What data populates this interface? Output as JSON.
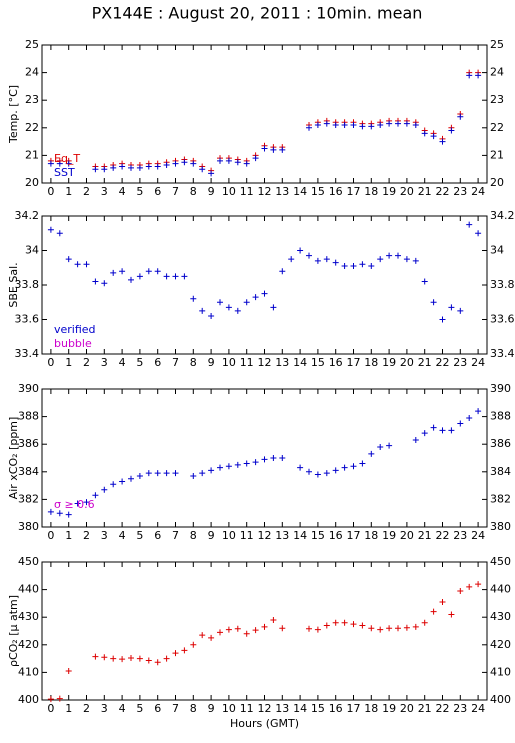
{
  "chart_data": [
    {
      "type": "scatter",
      "title": "PX144E : August 20, 2011 : 10min. mean",
      "ylabel": "Temp. [°C]",
      "x": [
        0,
        0.5,
        1,
        1.5,
        2,
        2.5,
        3,
        3.5,
        4,
        4.5,
        5,
        5.5,
        6,
        6.5,
        7,
        7.5,
        8,
        8.5,
        9,
        9.5,
        10,
        10.5,
        11,
        11.5,
        12,
        12.5,
        13,
        13.5,
        14,
        14.5,
        15,
        15.5,
        16,
        16.5,
        17,
        17.5,
        18,
        18.5,
        19,
        19.5,
        20,
        20.5,
        21,
        21.5,
        22,
        22.5,
        23,
        23.5,
        24
      ],
      "series": [
        {
          "name": "Eq_T",
          "color": "#dd0000",
          "values": [
            20.8,
            20.8,
            20.8,
            null,
            null,
            20.6,
            20.6,
            20.65,
            20.7,
            20.65,
            20.65,
            20.7,
            20.7,
            20.75,
            20.8,
            20.85,
            20.8,
            20.6,
            20.45,
            20.9,
            20.9,
            20.85,
            20.8,
            21.0,
            21.35,
            21.3,
            21.3,
            null,
            null,
            22.1,
            22.2,
            22.25,
            22.2,
            22.2,
            22.2,
            22.15,
            22.15,
            22.2,
            22.25,
            22.25,
            22.25,
            22.2,
            21.9,
            21.8,
            21.6,
            22.0,
            22.5,
            24.0,
            24.0
          ]
        },
        {
          "name": "SST",
          "color": "#0000cc",
          "values": [
            20.7,
            20.7,
            20.7,
            null,
            null,
            20.5,
            20.5,
            20.55,
            20.6,
            20.55,
            20.55,
            20.6,
            20.6,
            20.65,
            20.7,
            20.75,
            20.7,
            20.5,
            20.35,
            20.8,
            20.8,
            20.75,
            20.7,
            20.9,
            21.25,
            21.2,
            21.2,
            null,
            null,
            22.0,
            22.1,
            22.15,
            22.1,
            22.1,
            22.1,
            22.05,
            22.05,
            22.1,
            22.15,
            22.15,
            22.15,
            22.1,
            21.8,
            21.7,
            21.5,
            21.9,
            22.4,
            23.9,
            23.9
          ]
        }
      ],
      "xlim": [
        -0.5,
        24.5
      ],
      "xticks": [
        0,
        1,
        2,
        3,
        4,
        5,
        6,
        7,
        8,
        9,
        10,
        11,
        12,
        13,
        14,
        15,
        16,
        17,
        18,
        19,
        20,
        21,
        22,
        23,
        24
      ],
      "ylim": [
        20,
        25
      ],
      "yticks": [
        20,
        21,
        22,
        23,
        24,
        25
      ]
    },
    {
      "type": "scatter",
      "ylabel": "SBE Sal.",
      "x": [
        0,
        0.5,
        1,
        1.5,
        2,
        2.5,
        3,
        3.5,
        4,
        4.5,
        5,
        5.5,
        6,
        6.5,
        7,
        7.5,
        8,
        8.5,
        9,
        9.5,
        10,
        10.5,
        11,
        11.5,
        12,
        12.5,
        13,
        13.5,
        14,
        14.5,
        15,
        15.5,
        16,
        16.5,
        17,
        17.5,
        18,
        18.5,
        19,
        19.5,
        20,
        20.5,
        21,
        21.5,
        22,
        22.5,
        23,
        23.5,
        24
      ],
      "series": [
        {
          "name": "verified",
          "color": "#0000cc",
          "values": [
            34.12,
            34.1,
            33.95,
            33.92,
            33.92,
            33.82,
            33.81,
            33.87,
            33.88,
            33.83,
            33.85,
            33.88,
            33.88,
            33.85,
            33.85,
            33.85,
            33.72,
            33.65,
            33.62,
            33.7,
            33.67,
            33.65,
            33.7,
            33.73,
            33.75,
            33.67,
            33.88,
            33.95,
            34.0,
            33.97,
            33.94,
            33.95,
            33.93,
            33.91,
            33.91,
            33.92,
            33.91,
            33.95,
            33.97,
            33.97,
            33.95,
            33.94,
            33.82,
            33.7,
            33.6,
            33.67,
            33.65,
            34.15,
            34.1
          ]
        }
      ],
      "flags": [
        {
          "label": "verified",
          "color": "#0000cc"
        },
        {
          "label": "bubble",
          "color": "#cc00cc"
        }
      ],
      "xlim": [
        -0.5,
        24.5
      ],
      "xticks": [
        0,
        1,
        2,
        3,
        4,
        5,
        6,
        7,
        8,
        9,
        10,
        11,
        12,
        13,
        14,
        15,
        16,
        17,
        18,
        19,
        20,
        21,
        22,
        23,
        24
      ],
      "ylim": [
        33.4,
        34.2
      ],
      "yticks": [
        33.4,
        33.6,
        33.8,
        34,
        34.2
      ]
    },
    {
      "type": "scatter",
      "ylabel": "Air xCO₂ [ppm]",
      "x": [
        0,
        0.5,
        1,
        1.5,
        2,
        2.5,
        3,
        3.5,
        4,
        4.5,
        5,
        5.5,
        6,
        6.5,
        7,
        7.5,
        8,
        8.5,
        9,
        9.5,
        10,
        10.5,
        11,
        11.5,
        12,
        12.5,
        13,
        13.5,
        14,
        14.5,
        15,
        15.5,
        16,
        16.5,
        17,
        17.5,
        18,
        18.5,
        19,
        19.5,
        20,
        20.5,
        21,
        21.5,
        22,
        22.5,
        23,
        23.5,
        24
      ],
      "series": [
        {
          "name": "Air xCO₂",
          "color": "#0000cc",
          "values": [
            381.1,
            381.0,
            380.9,
            381.7,
            381.8,
            382.3,
            382.7,
            383.1,
            383.3,
            383.5,
            383.7,
            383.9,
            383.9,
            383.9,
            383.9,
            null,
            383.7,
            383.9,
            384.1,
            384.3,
            384.4,
            384.5,
            384.6,
            384.7,
            384.9,
            385.0,
            385.0,
            null,
            384.3,
            384.0,
            383.8,
            383.9,
            384.1,
            384.3,
            384.4,
            384.6,
            385.3,
            385.8,
            385.9,
            null,
            null,
            386.3,
            386.8,
            387.2,
            387.0,
            387.0,
            387.5,
            387.9,
            388.4
          ]
        }
      ],
      "annotation": {
        "text": "σ ≥ 0.6",
        "color": "#cc00cc"
      },
      "xlim": [
        -0.5,
        24.5
      ],
      "xticks": [
        0,
        1,
        2,
        3,
        4,
        5,
        6,
        7,
        8,
        9,
        10,
        11,
        12,
        13,
        14,
        15,
        16,
        17,
        18,
        19,
        20,
        21,
        22,
        23,
        24
      ],
      "ylim": [
        380,
        390
      ],
      "yticks": [
        380,
        382,
        384,
        386,
        388,
        390
      ]
    },
    {
      "type": "scatter",
      "ylabel": "ρCO₂ [µ atm]",
      "xlabel": "Hours (GMT)",
      "x": [
        0,
        0.5,
        1,
        1.5,
        2,
        2.5,
        3,
        3.5,
        4,
        4.5,
        5,
        5.5,
        6,
        6.5,
        7,
        7.5,
        8,
        8.5,
        9,
        9.5,
        10,
        10.5,
        11,
        11.5,
        12,
        12.5,
        13,
        13.5,
        14,
        14.5,
        15,
        15.5,
        16,
        16.5,
        17,
        17.5,
        18,
        18.5,
        19,
        19.5,
        20,
        20.5,
        21,
        21.5,
        22,
        22.5,
        23,
        23.5,
        24
      ],
      "series": [
        {
          "name": "ρCO₂",
          "color": "#dd0000",
          "values": [
            400.3,
            400.5,
            410.5,
            null,
            null,
            415.7,
            415.5,
            415.0,
            414.8,
            415.2,
            415.0,
            414.3,
            413.7,
            415.0,
            417.0,
            418.0,
            420.0,
            423.5,
            422.5,
            424.5,
            425.5,
            425.8,
            424.0,
            425.3,
            426.5,
            429.0,
            426.0,
            null,
            null,
            425.8,
            425.5,
            427.0,
            428.0,
            428.0,
            427.5,
            427.0,
            426.0,
            425.5,
            426.0,
            426.0,
            426.2,
            426.5,
            428.0,
            432.0,
            435.5,
            431.0,
            439.5,
            441.0,
            442.0
          ]
        }
      ],
      "xlim": [
        -0.5,
        24.5
      ],
      "xticks": [
        0,
        1,
        2,
        3,
        4,
        5,
        6,
        7,
        8,
        9,
        10,
        11,
        12,
        13,
        14,
        15,
        16,
        17,
        18,
        19,
        20,
        21,
        22,
        23,
        24
      ],
      "ylim": [
        400,
        450
      ],
      "yticks": [
        400,
        410,
        420,
        430,
        440,
        450
      ]
    }
  ]
}
